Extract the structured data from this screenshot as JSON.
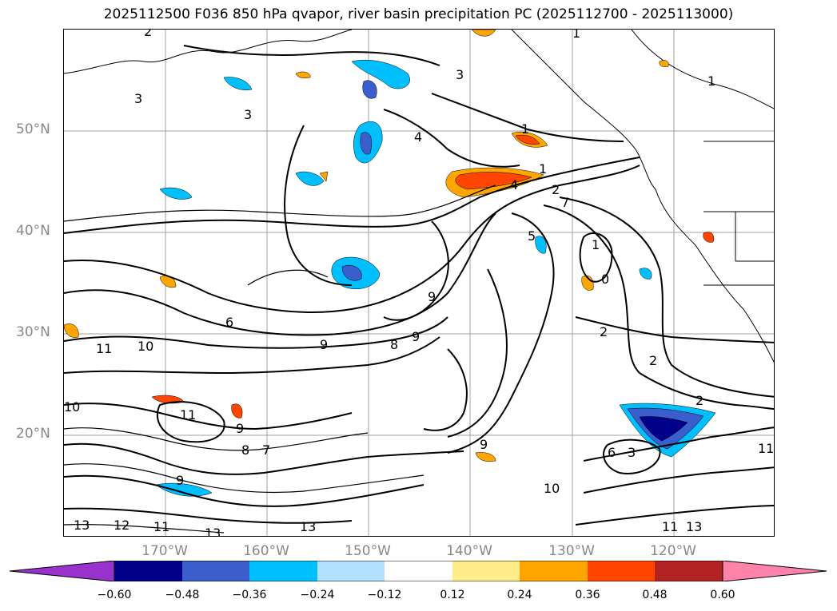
{
  "title": "2025112500 F036 850 hPa qvapor, river basin precipitation PC (2025112700 - 2025113000)",
  "map": {
    "lat_ticks": [
      "50°N",
      "40°N",
      "30°N",
      "20°N"
    ],
    "lon_ticks": [
      "170°W",
      "160°W",
      "150°W",
      "140°W",
      "130°W",
      "120°W"
    ],
    "contour_labels": [
      "2",
      "3",
      "3",
      "3",
      "4",
      "1",
      "1",
      "1",
      "1",
      "4",
      "2",
      "7",
      "1",
      "0",
      "2",
      "2",
      "2",
      "9",
      "6",
      "9",
      "8",
      "9",
      "11",
      "10",
      "11",
      "9",
      "7",
      "8",
      "10",
      "9",
      "6",
      "3",
      "13",
      "12",
      "11",
      "13",
      "13",
      "11",
      "11",
      "13",
      "9",
      "10",
      "5"
    ],
    "land_color": "#ffffff",
    "grid_color": "#a0a0a0"
  },
  "colorbar": {
    "ticks": [
      "−0.60",
      "−0.48",
      "−0.36",
      "−0.24",
      "−0.12",
      "0.12",
      "0.24",
      "0.36",
      "0.48",
      "0.60"
    ],
    "colors": [
      "#9932cc",
      "#00008b",
      "#3a5fcd",
      "#00bfff",
      "#b0e2ff",
      "#ffffff",
      "#ffec8b",
      "#ffa500",
      "#ff4500",
      "#b22222",
      "#ff82ab"
    ]
  }
}
